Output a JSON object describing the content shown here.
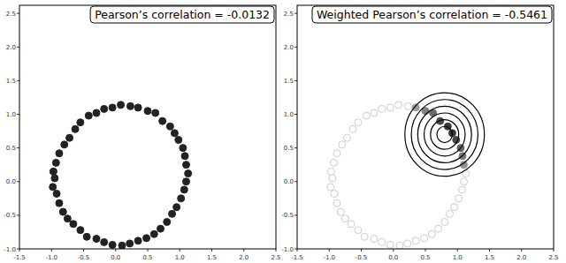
{
  "chart_data": [
    {
      "type": "scatter",
      "title": "Pearson’s correlation = -0.0132",
      "x": [
        1.13,
        1.1,
        1.08,
        1.05,
        0.98,
        0.92,
        0.85,
        0.73,
        0.62,
        0.5,
        0.35,
        0.23,
        0.08,
        -0.05,
        -0.18,
        -0.3,
        -0.42,
        -0.55,
        -0.63,
        -0.72,
        -0.8,
        -0.88,
        -0.93,
        -0.97,
        -0.95,
        -0.98,
        -0.92,
        -0.88,
        -0.82,
        -0.75,
        -0.66,
        -0.55,
        -0.45,
        -0.3,
        -0.18,
        -0.05,
        0.1,
        0.22,
        0.35,
        0.48,
        0.6,
        0.7,
        0.8,
        0.88,
        0.95,
        1.02,
        1.07,
        1.1
      ],
      "y": [
        0.12,
        0.25,
        0.38,
        0.5,
        0.62,
        0.72,
        0.82,
        0.9,
        1.02,
        1.05,
        1.1,
        1.12,
        1.14,
        1.1,
        1.08,
        1.02,
        0.98,
        0.88,
        0.78,
        0.65,
        0.55,
        0.42,
        0.28,
        0.15,
        0.05,
        -0.08,
        -0.18,
        -0.32,
        -0.45,
        -0.55,
        -0.63,
        -0.72,
        -0.82,
        -0.85,
        -0.9,
        -0.94,
        -0.95,
        -0.92,
        -0.88,
        -0.84,
        -0.78,
        -0.7,
        -0.6,
        -0.48,
        -0.38,
        -0.25,
        -0.12,
        0.0
      ],
      "color": "#222222",
      "xlim": [
        -1.5,
        2.5
      ],
      "ylim": [
        -1.0,
        2.62
      ],
      "xticks": [
        {
          "value": -1.5,
          "label": "-1.5"
        },
        {
          "value": -1.0,
          "label": "-1.0"
        },
        {
          "value": -0.5,
          "label": "-0.5"
        },
        {
          "value": 0.0,
          "label": "0.0"
        },
        {
          "value": 0.5,
          "label": "0.5"
        },
        {
          "value": 1.0,
          "label": "1.0"
        },
        {
          "value": 1.5,
          "label": "1.5"
        },
        {
          "value": 2.0,
          "label": "2.0"
        },
        {
          "value": 2.5,
          "label": "2.5"
        }
      ],
      "yticks": [
        {
          "value": -1.0,
          "label": "-1.0"
        },
        {
          "value": -0.5,
          "label": "-0.5"
        },
        {
          "value": 0.0,
          "label": "0.0"
        },
        {
          "value": 0.5,
          "label": "0.5"
        },
        {
          "value": 1.0,
          "label": "1.0"
        },
        {
          "value": 1.5,
          "label": "1.5"
        },
        {
          "value": 2.0,
          "label": "2.0"
        },
        {
          "value": 2.5,
          "label": "2.5"
        }
      ],
      "grid": false
    },
    {
      "type": "scatter",
      "title": "Weighted Pearson’s correlation = -0.5461",
      "x": [
        1.13,
        1.1,
        1.08,
        1.05,
        0.98,
        0.92,
        0.85,
        0.73,
        0.62,
        0.5,
        0.35,
        0.23,
        0.08,
        -0.05,
        -0.18,
        -0.3,
        -0.42,
        -0.55,
        -0.63,
        -0.72,
        -0.8,
        -0.88,
        -0.93,
        -0.97,
        -0.95,
        -0.98,
        -0.92,
        -0.88,
        -0.82,
        -0.75,
        -0.66,
        -0.55,
        -0.45,
        -0.3,
        -0.18,
        -0.05,
        0.1,
        0.22,
        0.35,
        0.48,
        0.6,
        0.7,
        0.8,
        0.88,
        0.95,
        1.02,
        1.07,
        1.1
      ],
      "y": [
        0.12,
        0.25,
        0.38,
        0.5,
        0.62,
        0.72,
        0.82,
        0.9,
        1.02,
        1.05,
        1.1,
        1.12,
        1.14,
        1.1,
        1.08,
        1.02,
        0.98,
        0.88,
        0.78,
        0.65,
        0.55,
        0.42,
        0.28,
        0.15,
        0.05,
        -0.08,
        -0.18,
        -0.32,
        -0.45,
        -0.55,
        -0.63,
        -0.72,
        -0.82,
        -0.85,
        -0.9,
        -0.94,
        -0.95,
        -0.92,
        -0.88,
        -0.84,
        -0.78,
        -0.7,
        -0.6,
        -0.48,
        -0.38,
        -0.25,
        -0.12,
        0.0
      ],
      "color": "#222222",
      "weight_center": [
        0.8,
        0.7
      ],
      "circle_radii": [
        0.12,
        0.22,
        0.32,
        0.42,
        0.52,
        0.62
      ],
      "xlim": [
        -1.5,
        2.5
      ],
      "ylim": [
        -1.0,
        2.62
      ],
      "xticks": [
        {
          "value": -1.5,
          "label": "-1.5"
        },
        {
          "value": -1.0,
          "label": "-1.0"
        },
        {
          "value": -0.5,
          "label": "-0.5"
        },
        {
          "value": 0.0,
          "label": "0.0"
        },
        {
          "value": 0.5,
          "label": "0.5"
        },
        {
          "value": 1.0,
          "label": "1.0"
        },
        {
          "value": 1.5,
          "label": "1.5"
        },
        {
          "value": 2.0,
          "label": "2.0"
        },
        {
          "value": 2.5,
          "label": "2.5"
        }
      ],
      "yticks": [
        {
          "value": -1.0,
          "label": "-1.0"
        },
        {
          "value": -0.5,
          "label": "-0.5"
        },
        {
          "value": 0.0,
          "label": "0.0"
        },
        {
          "value": 0.5,
          "label": "0.5"
        },
        {
          "value": 1.0,
          "label": "1.0"
        },
        {
          "value": 1.5,
          "label": "1.5"
        },
        {
          "value": 2.0,
          "label": "2.0"
        },
        {
          "value": 2.5,
          "label": "2.5"
        }
      ],
      "grid": false
    }
  ]
}
